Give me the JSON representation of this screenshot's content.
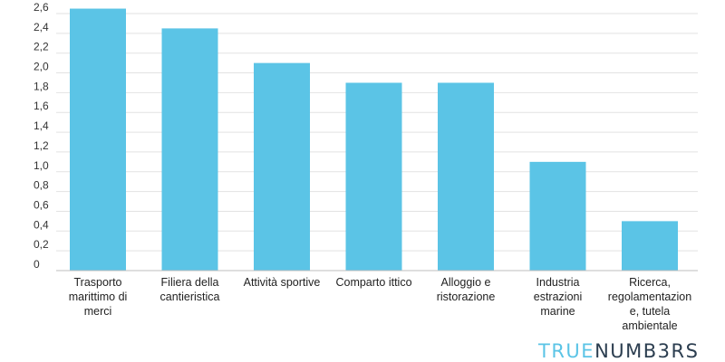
{
  "chart_data": {
    "type": "bar",
    "categories": [
      [
        "Trasporto",
        "marittimo di",
        "merci"
      ],
      [
        "Filiera della",
        "cantieristica"
      ],
      [
        "Attività sportive"
      ],
      [
        "Comparto ittico"
      ],
      [
        "Alloggio e",
        "ristorazione"
      ],
      [
        "Industria",
        "estrazioni",
        "marine"
      ],
      [
        "Ricerca,",
        "regolamentazion",
        "e, tutela",
        "ambientale"
      ]
    ],
    "values": [
      2.65,
      2.45,
      2.1,
      1.9,
      1.9,
      1.1,
      0.5
    ],
    "ylim": [
      0,
      2.6
    ],
    "yticks": [
      "0",
      "0,2",
      "0,4",
      "0,6",
      "0,8",
      "1,0",
      "1,2",
      "1,4",
      "1,6",
      "1,8",
      "2,0",
      "2,2",
      "2,4",
      "2,6"
    ],
    "ytick_values": [
      0,
      0.2,
      0.4,
      0.6,
      0.8,
      1.0,
      1.2,
      1.4,
      1.6,
      1.8,
      2.0,
      2.2,
      2.4,
      2.6
    ],
    "bar_color": "#5bc4e6",
    "grid": true,
    "title": "",
    "xlabel": "",
    "ylabel": ""
  },
  "logo": {
    "part1": "TRUE",
    "part2": "NUMB3RS",
    "color_primary": "#5bc4e6",
    "color_secondary": "#2c3e50"
  }
}
